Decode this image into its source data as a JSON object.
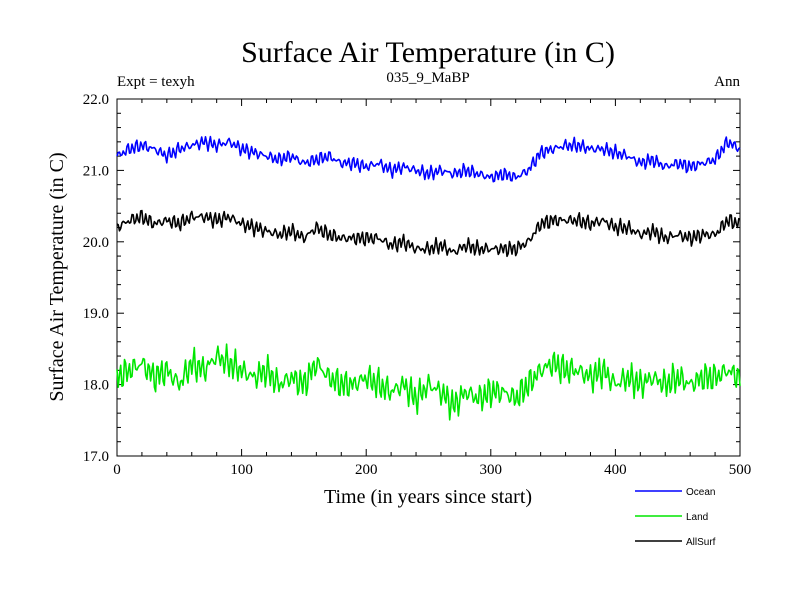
{
  "chart_data": {
    "type": "line",
    "title": "Surface Air Temperature (in C)",
    "subtitle": "035_9_MaBP",
    "left_note": "Expt = texyh",
    "right_note": "Ann",
    "xlabel": "Time (in years since start)",
    "ylabel": "Surface Air Temperature (in C)",
    "xlim": [
      0,
      500
    ],
    "ylim": [
      17.0,
      22.0
    ],
    "xticks": [
      0,
      100,
      200,
      300,
      400,
      500
    ],
    "yticks": [
      "17.0",
      "18.0",
      "19.0",
      "20.0",
      "21.0",
      "22.0"
    ],
    "grid": false,
    "legend_position": "bottom-right",
    "series": [
      {
        "name": "Ocean",
        "color": "#0000ff",
        "x": [
          0,
          10,
          20,
          30,
          40,
          50,
          60,
          70,
          80,
          90,
          100,
          110,
          120,
          130,
          140,
          150,
          160,
          170,
          180,
          190,
          200,
          210,
          220,
          230,
          240,
          250,
          260,
          270,
          280,
          290,
          300,
          310,
          320,
          330,
          340,
          350,
          360,
          370,
          380,
          390,
          400,
          410,
          420,
          430,
          440,
          450,
          460,
          470,
          480,
          490,
          500
        ],
        "y": [
          21.2,
          21.3,
          21.35,
          21.3,
          21.2,
          21.3,
          21.35,
          21.4,
          21.35,
          21.4,
          21.3,
          21.25,
          21.2,
          21.15,
          21.2,
          21.1,
          21.15,
          21.2,
          21.1,
          21.1,
          21.05,
          21.1,
          21.0,
          21.05,
          21.0,
          20.95,
          21.0,
          20.95,
          21.0,
          20.95,
          20.9,
          20.95,
          20.9,
          21.0,
          21.25,
          21.3,
          21.35,
          21.35,
          21.3,
          21.3,
          21.25,
          21.2,
          21.1,
          21.15,
          21.05,
          21.1,
          21.05,
          21.1,
          21.15,
          21.4,
          21.3
        ]
      },
      {
        "name": "Land",
        "color": "#00e600",
        "x": [
          0,
          10,
          20,
          30,
          40,
          50,
          60,
          70,
          80,
          90,
          100,
          110,
          120,
          130,
          140,
          150,
          160,
          170,
          180,
          190,
          200,
          210,
          220,
          230,
          240,
          250,
          260,
          270,
          280,
          290,
          300,
          310,
          320,
          330,
          340,
          350,
          360,
          370,
          380,
          390,
          400,
          410,
          420,
          430,
          440,
          450,
          460,
          470,
          480,
          490,
          500
        ],
        "y": [
          18.1,
          18.2,
          18.3,
          18.1,
          18.2,
          18.0,
          18.3,
          18.2,
          18.4,
          18.3,
          18.2,
          18.1,
          18.2,
          18.0,
          18.1,
          18.0,
          18.3,
          18.1,
          18.0,
          18.0,
          18.1,
          18.0,
          17.9,
          18.0,
          17.8,
          18.0,
          17.9,
          17.7,
          17.9,
          17.8,
          17.9,
          17.9,
          17.8,
          18.0,
          18.2,
          18.3,
          18.2,
          18.2,
          18.1,
          18.2,
          18.0,
          18.1,
          18.0,
          18.1,
          18.0,
          18.1,
          18.0,
          18.1,
          18.1,
          18.2,
          18.1
        ]
      },
      {
        "name": "AllSurf",
        "color": "#000000",
        "x": [
          0,
          10,
          20,
          30,
          40,
          50,
          60,
          70,
          80,
          90,
          100,
          110,
          120,
          130,
          140,
          150,
          160,
          170,
          180,
          190,
          200,
          210,
          220,
          230,
          240,
          250,
          260,
          270,
          280,
          290,
          300,
          310,
          320,
          330,
          340,
          350,
          360,
          370,
          380,
          390,
          400,
          410,
          420,
          430,
          440,
          450,
          460,
          470,
          480,
          490,
          500
        ],
        "y": [
          20.2,
          20.3,
          20.35,
          20.25,
          20.3,
          20.25,
          20.35,
          20.35,
          20.3,
          20.35,
          20.25,
          20.2,
          20.15,
          20.1,
          20.15,
          20.05,
          20.2,
          20.1,
          20.05,
          20.05,
          20.05,
          20.05,
          19.95,
          20.0,
          19.9,
          19.9,
          19.95,
          19.85,
          19.95,
          19.9,
          19.9,
          19.9,
          19.9,
          20.0,
          20.25,
          20.3,
          20.3,
          20.3,
          20.25,
          20.3,
          20.2,
          20.2,
          20.1,
          20.15,
          20.05,
          20.1,
          20.05,
          20.1,
          20.1,
          20.3,
          20.25
        ]
      }
    ]
  }
}
